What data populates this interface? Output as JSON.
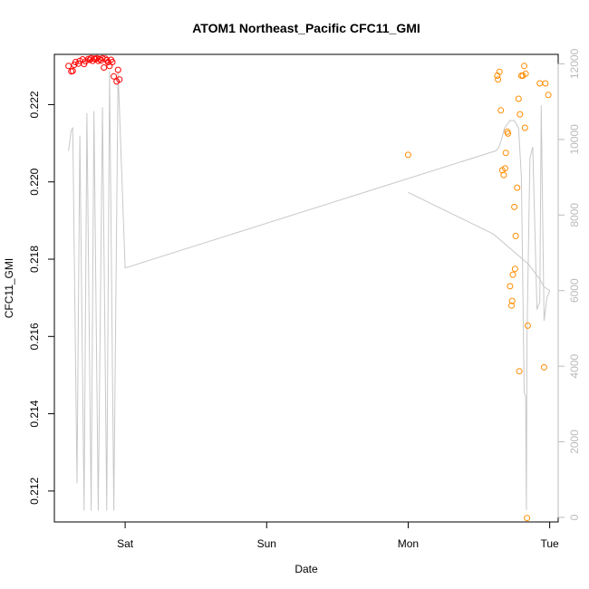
{
  "chart_data": {
    "type": "scatter",
    "title": "ATOM1 Northeast_Pacific CFC11_GMI",
    "xlabel": "Date",
    "ylabel": "CFC11_GMI",
    "x_ticks": [
      {
        "label": "Sat",
        "value": 1
      },
      {
        "label": "Sun",
        "value": 2
      },
      {
        "label": "Mon",
        "value": 3
      },
      {
        "label": "Tue",
        "value": 4
      }
    ],
    "xlim": [
      0.5,
      4.06
    ],
    "ylim": [
      0.2112,
      0.2233
    ],
    "y_ticks": [
      0.212,
      0.214,
      0.216,
      0.218,
      0.22,
      0.222
    ],
    "y2lim": [
      -120,
      12250
    ],
    "y2_ticks": [
      0,
      2000,
      4000,
      6000,
      8000,
      10000,
      12000
    ],
    "grid": false,
    "colors": {
      "series_a": "#ff0000",
      "series_b": "#ff8c00",
      "altitude": "#c8c8c8",
      "axis": "#000000",
      "axis_right": "#bbbbbb"
    },
    "series": [
      {
        "values": [
          [
            0.6,
            0.223
          ],
          [
            0.62,
            0.22286
          ],
          [
            0.63,
            0.22287
          ],
          [
            0.64,
            0.22303
          ],
          [
            0.65,
            0.2231
          ],
          [
            0.67,
            0.22306
          ],
          [
            0.68,
            0.22313
          ],
          [
            0.7,
            0.22317
          ],
          [
            0.71,
            0.22305
          ],
          [
            0.72,
            0.22312
          ],
          [
            0.74,
            0.22318
          ],
          [
            0.75,
            0.22316
          ],
          [
            0.76,
            0.2232
          ],
          [
            0.77,
            0.22313
          ],
          [
            0.78,
            0.22319
          ],
          [
            0.79,
            0.22318
          ],
          [
            0.8,
            0.2232
          ],
          [
            0.81,
            0.22313
          ],
          [
            0.82,
            0.22318
          ],
          [
            0.83,
            0.22314
          ],
          [
            0.84,
            0.2232
          ],
          [
            0.85,
            0.22296
          ],
          [
            0.86,
            0.22319
          ],
          [
            0.87,
            0.22315
          ],
          [
            0.88,
            0.2231
          ],
          [
            0.89,
            0.223
          ],
          [
            0.9,
            0.22316
          ],
          [
            0.91,
            0.2231
          ],
          [
            0.92,
            0.22273
          ],
          [
            0.94,
            0.2226
          ],
          [
            0.95,
            0.2229
          ],
          [
            0.96,
            0.22265
          ]
        ]
      },
      {
        "values": [
          [
            3.0,
            0.2207
          ],
          [
            3.63,
            0.22275
          ],
          [
            3.635,
            0.22265
          ],
          [
            3.645,
            0.22285
          ],
          [
            3.655,
            0.22185
          ],
          [
            3.665,
            0.2203
          ],
          [
            3.675,
            0.22018
          ],
          [
            3.685,
            0.22035
          ],
          [
            3.69,
            0.22075
          ],
          [
            3.7,
            0.2213
          ],
          [
            3.705,
            0.22125
          ],
          [
            3.72,
            0.2173
          ],
          [
            3.73,
            0.2168
          ],
          [
            3.735,
            0.21692
          ],
          [
            3.74,
            0.2176
          ],
          [
            3.75,
            0.21935
          ],
          [
            3.755,
            0.21775
          ],
          [
            3.76,
            0.2186
          ],
          [
            3.77,
            0.21985
          ],
          [
            3.78,
            0.22215
          ],
          [
            3.785,
            0.2151
          ],
          [
            3.79,
            0.22175
          ],
          [
            3.8,
            0.22275
          ],
          [
            3.81,
            0.22275
          ],
          [
            3.82,
            0.223
          ],
          [
            3.825,
            0.2214
          ],
          [
            3.83,
            0.2228
          ],
          [
            3.84,
            0.2113
          ],
          [
            3.845,
            0.21628
          ],
          [
            3.93,
            0.22255
          ],
          [
            3.96,
            0.2152
          ],
          [
            3.97,
            0.22255
          ],
          [
            3.99,
            0.22225
          ]
        ]
      }
    ],
    "altitude_line": [
      [
        0.6,
        9700
      ],
      [
        0.62,
        10250
      ],
      [
        0.63,
        10300
      ],
      [
        0.66,
        900
      ],
      [
        0.68,
        10100
      ],
      [
        0.71,
        180
      ],
      [
        0.73,
        10700
      ],
      [
        0.76,
        180
      ],
      [
        0.78,
        10750
      ],
      [
        0.81,
        180
      ],
      [
        0.84,
        10850
      ],
      [
        0.87,
        180
      ],
      [
        0.89,
        11800
      ],
      [
        0.92,
        180
      ],
      [
        0.95,
        11800
      ],
      [
        1.0,
        6600
      ],
      [
        3.62,
        9700
      ],
      [
        3.64,
        9780
      ],
      [
        3.66,
        10000
      ],
      [
        3.68,
        10300
      ],
      [
        3.72,
        10500
      ],
      [
        3.75,
        10500
      ],
      [
        3.78,
        10300
      ],
      [
        3.8,
        9000
      ],
      [
        3.82,
        3300
      ],
      [
        3.83,
        3200
      ],
      [
        3.835,
        200
      ],
      [
        3.84,
        4800
      ],
      [
        3.86,
        9500
      ],
      [
        3.88,
        9800
      ],
      [
        3.91,
        5500
      ],
      [
        3.93,
        5700
      ],
      [
        3.94,
        10900
      ],
      [
        3.96,
        5200
      ],
      [
        3.98,
        5800
      ],
      [
        4.0,
        6000
      ],
      [
        3.96,
        6100
      ],
      [
        3.93,
        6300
      ],
      [
        3.85,
        6700
      ],
      [
        3.6,
        7500
      ],
      [
        3.0,
        8600
      ]
    ]
  }
}
